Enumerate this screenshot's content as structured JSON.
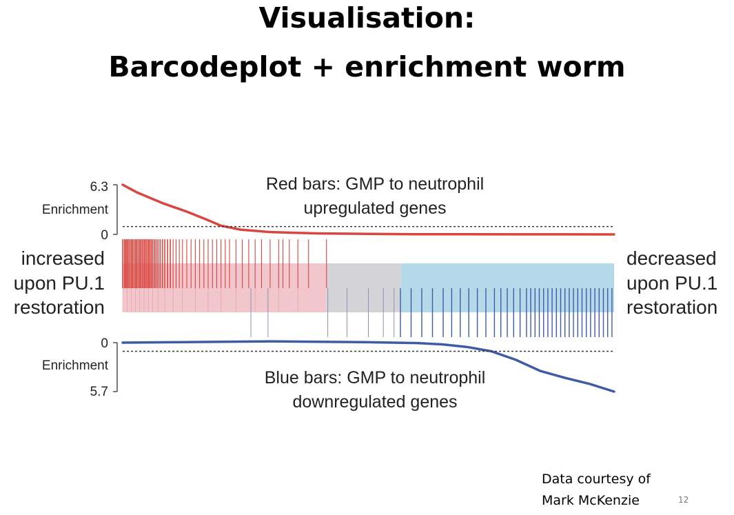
{
  "slide": {
    "title_line1": "Visualisation:",
    "title_line2": "Barcodeplot + enrichment worm",
    "credit_line1": "Data courtesy of",
    "credit_line2": "Mark McKenzie",
    "slide_number": "12"
  },
  "chart_data": {
    "type": "barcode",
    "left_label": [
      "increased",
      "upon PU.1",
      "restoration"
    ],
    "right_label": [
      "decreased",
      "upon PU.1",
      "restoration"
    ],
    "colors": {
      "red": "#d9453f",
      "blue": "#3f5aa6",
      "pink_band": "#f1c6cd",
      "grey_band": "#d4d4d8",
      "blue_band": "#b4d9e8"
    },
    "top_worm": {
      "title_line1": "Red bars: GMP to neutrophil",
      "title_line2": "upregulated genes",
      "axis_label": "Enrichment",
      "y_max_label": "6.3",
      "y_min_label": "0",
      "y_max": 6.3,
      "baseline": 1,
      "x": [
        0,
        0.03,
        0.08,
        0.13,
        0.17,
        0.2,
        0.24,
        0.3,
        0.4,
        0.5,
        0.6,
        0.7,
        0.8,
        0.9,
        1.0
      ],
      "y": [
        6.3,
        5.3,
        4.0,
        2.9,
        1.9,
        1.1,
        0.6,
        0.3,
        0.12,
        0.06,
        0.03,
        0.02,
        0.01,
        0.01,
        0.0
      ]
    },
    "bottom_worm": {
      "title_line1": "Blue bars: GMP to neutrophil",
      "title_line2": "downregulated genes",
      "axis_label": "Enrichment",
      "y_max_label": "5.7",
      "y_min_label": "0",
      "y_max": 5.7,
      "baseline": 1,
      "x": [
        0,
        0.1,
        0.2,
        0.3,
        0.4,
        0.5,
        0.6,
        0.65,
        0.7,
        0.75,
        0.8,
        0.85,
        0.9,
        0.95,
        1.0
      ],
      "y": [
        0.0,
        -0.05,
        -0.1,
        -0.15,
        -0.1,
        -0.05,
        0.05,
        0.2,
        0.5,
        1.0,
        2.0,
        3.3,
        4.1,
        4.8,
        5.7
      ]
    },
    "bands": [
      {
        "name": "up",
        "from": 0.0,
        "to": 0.954,
        "color": "pink_band"
      },
      {
        "name": "mid",
        "from": 0.954,
        "to": 1.303,
        "color": "grey_band"
      },
      {
        "name": "down",
        "from": 1.303,
        "to": 2.3,
        "color": "blue_band"
      }
    ],
    "red_positions": [
      0.0,
      0.008,
      0.014,
      0.02,
      0.026,
      0.033,
      0.04,
      0.046,
      0.053,
      0.06,
      0.066,
      0.073,
      0.08,
      0.086,
      0.093,
      0.1,
      0.106,
      0.113,
      0.12,
      0.126,
      0.133,
      0.14,
      0.148,
      0.156,
      0.165,
      0.175,
      0.186,
      0.197,
      0.21,
      0.223,
      0.236,
      0.25,
      0.265,
      0.28,
      0.3,
      0.32,
      0.34,
      0.36,
      0.38,
      0.4,
      0.42,
      0.44,
      0.46,
      0.48,
      0.5,
      0.53,
      0.56,
      0.59,
      0.62,
      0.65,
      0.69,
      0.73,
      0.75,
      0.78,
      0.82,
      0.87,
      0.954
    ],
    "blue_positions": [
      0.6,
      0.68,
      0.96,
      1.05,
      1.15,
      1.22,
      1.27,
      1.3,
      1.35,
      1.4,
      1.45,
      1.5,
      1.54,
      1.58,
      1.62,
      1.66,
      1.7,
      1.74,
      1.77,
      1.8,
      1.83,
      1.86,
      1.89,
      1.91,
      1.93,
      1.95,
      1.97,
      1.99,
      2.01,
      2.03,
      2.05,
      2.07,
      2.09,
      2.11,
      2.13,
      2.15,
      2.17,
      2.19,
      2.21,
      2.23,
      2.25,
      2.27,
      2.29
    ]
  }
}
